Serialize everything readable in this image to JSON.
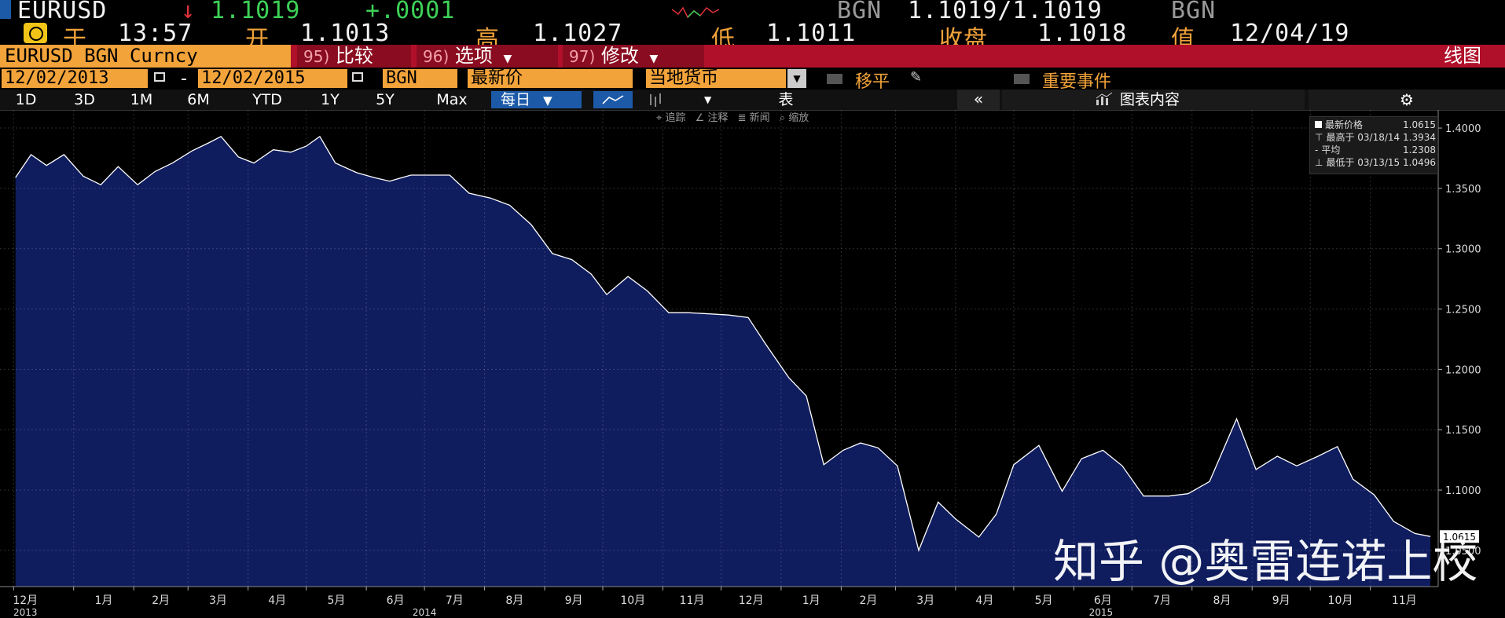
{
  "ticker_row1": {
    "symbol": "EURUSD",
    "arrow": "↓",
    "last": "1.1019",
    "change": "+.0001",
    "src_left": "BGN",
    "bidask": "1.1019/1.1019",
    "src_right": "BGN"
  },
  "ticker_row2": {
    "at_label": "于",
    "time": "13:57",
    "open_label": "开",
    "open": "1.1013",
    "high_label": "高",
    "high": "1.1027",
    "low_label": "低",
    "low": "1.1011",
    "close_label": "收盘",
    "close": "1.1018",
    "value_label": "值",
    "value_date": "12/04/19"
  },
  "toolbar": {
    "security": "EURUSD BGN Curncy",
    "btn1_num": "95)",
    "btn1_label": "比较",
    "btn2_num": "96)",
    "btn2_label": "选项",
    "btn3_num": "97)",
    "btn3_label": "修改",
    "right_label": "线图"
  },
  "range": {
    "start": "12/02/2013",
    "sep": "-",
    "end": "12/02/2015",
    "source": "BGN",
    "field": "最新价",
    "currency": "当地货币",
    "shift_label": "移平",
    "events_label": "重要事件"
  },
  "periods": [
    "1D",
    "3D",
    "1M",
    "6M",
    "YTD",
    "1Y",
    "5Y",
    "Max"
  ],
  "frequency": "每日",
  "table_label": "表",
  "chart_content_label": "图表内容",
  "subtools": [
    "追踪",
    "注释",
    "新闻",
    "缩放"
  ],
  "legend": {
    "r1_label": "最新价格",
    "r1_value": "1.0615",
    "r2_label": "最高于 03/18/14",
    "r2_value": "1.3934",
    "r3_label": "平均",
    "r3_value": "1.2308",
    "r4_label": "最低于 03/13/15",
    "r4_value": "1.0496"
  },
  "last_tag": "1.0615",
  "watermark": "知乎 @奥雷连诺上校",
  "colors": {
    "area_fill": "#0f1c5e",
    "line": "#ffffff",
    "grid": "#3a3a3a",
    "orange": "#f2a33a",
    "toolbar_red": "#b0102a",
    "up_green": "#3dd157",
    "down_red": "#e0303a"
  },
  "chart_data": {
    "type": "area",
    "title": "",
    "xlabel": "",
    "ylabel": "",
    "ylim": [
      1.02,
      1.415
    ],
    "yticks": [
      "1.4000",
      "1.3500",
      "1.3000",
      "1.2500",
      "1.2000",
      "1.1500",
      "1.1000",
      "1.0500"
    ],
    "xtick_labels": [
      "12月",
      "1月",
      "2月",
      "3月",
      "4月",
      "5月",
      "6月",
      "7月",
      "8月",
      "9月",
      "10月",
      "11月",
      "12月",
      "1月",
      "2月",
      "3月",
      "4月",
      "5月",
      "6月",
      "7月",
      "8月",
      "9月",
      "10月",
      "11月"
    ],
    "year_labels": [
      "2013",
      "2014",
      "2015"
    ],
    "grid": true,
    "series": [
      {
        "x": [
          "2013-12-02",
          "2013-12-10",
          "2013-12-18",
          "2013-12-27",
          "2014-01-06",
          "2014-01-15",
          "2014-01-24",
          "2014-02-03",
          "2014-02-12",
          "2014-02-21",
          "2014-03-03",
          "2014-03-12",
          "2014-03-18",
          "2014-03-27",
          "2014-04-04",
          "2014-04-14",
          "2014-04-23",
          "2014-05-01",
          "2014-05-08",
          "2014-05-16",
          "2014-05-27",
          "2014-06-05",
          "2014-06-13",
          "2014-06-24",
          "2014-07-03",
          "2014-07-14",
          "2014-07-24",
          "2014-08-04",
          "2014-08-14",
          "2014-08-25",
          "2014-09-05",
          "2014-09-15",
          "2014-09-25",
          "2014-10-03",
          "2014-10-14",
          "2014-10-24",
          "2014-11-04",
          "2014-11-14",
          "2014-11-25",
          "2014-12-05",
          "2014-12-15",
          "2014-12-24",
          "2015-01-05",
          "2015-01-14",
          "2015-01-23",
          "2015-02-02",
          "2015-02-11",
          "2015-02-20",
          "2015-03-02",
          "2015-03-13",
          "2015-03-23",
          "2015-04-01",
          "2015-04-13",
          "2015-04-22",
          "2015-05-01",
          "2015-05-14",
          "2015-05-26",
          "2015-06-05",
          "2015-06-16",
          "2015-06-26",
          "2015-07-07",
          "2015-07-20",
          "2015-07-30",
          "2015-08-10",
          "2015-08-24",
          "2015-09-03",
          "2015-09-14",
          "2015-09-24",
          "2015-10-05",
          "2015-10-15",
          "2015-10-23",
          "2015-11-03",
          "2015-11-13",
          "2015-11-24",
          "2015-12-02"
        ],
        "values": [
          1.359,
          1.378,
          1.369,
          1.378,
          1.36,
          1.353,
          1.368,
          1.353,
          1.364,
          1.371,
          1.381,
          1.388,
          1.393,
          1.376,
          1.371,
          1.382,
          1.38,
          1.385,
          1.393,
          1.371,
          1.363,
          1.359,
          1.356,
          1.361,
          1.361,
          1.361,
          1.346,
          1.342,
          1.336,
          1.32,
          1.296,
          1.291,
          1.279,
          1.262,
          1.277,
          1.265,
          1.247,
          1.247,
          1.246,
          1.245,
          1.243,
          1.221,
          1.193,
          1.178,
          1.121,
          1.133,
          1.139,
          1.135,
          1.12,
          1.05,
          1.09,
          1.076,
          1.061,
          1.08,
          1.121,
          1.137,
          1.099,
          1.126,
          1.133,
          1.12,
          1.095,
          1.095,
          1.097,
          1.107,
          1.159,
          1.117,
          1.128,
          1.12,
          1.128,
          1.136,
          1.109,
          1.096,
          1.074,
          1.064,
          1.0615
        ]
      }
    ]
  }
}
